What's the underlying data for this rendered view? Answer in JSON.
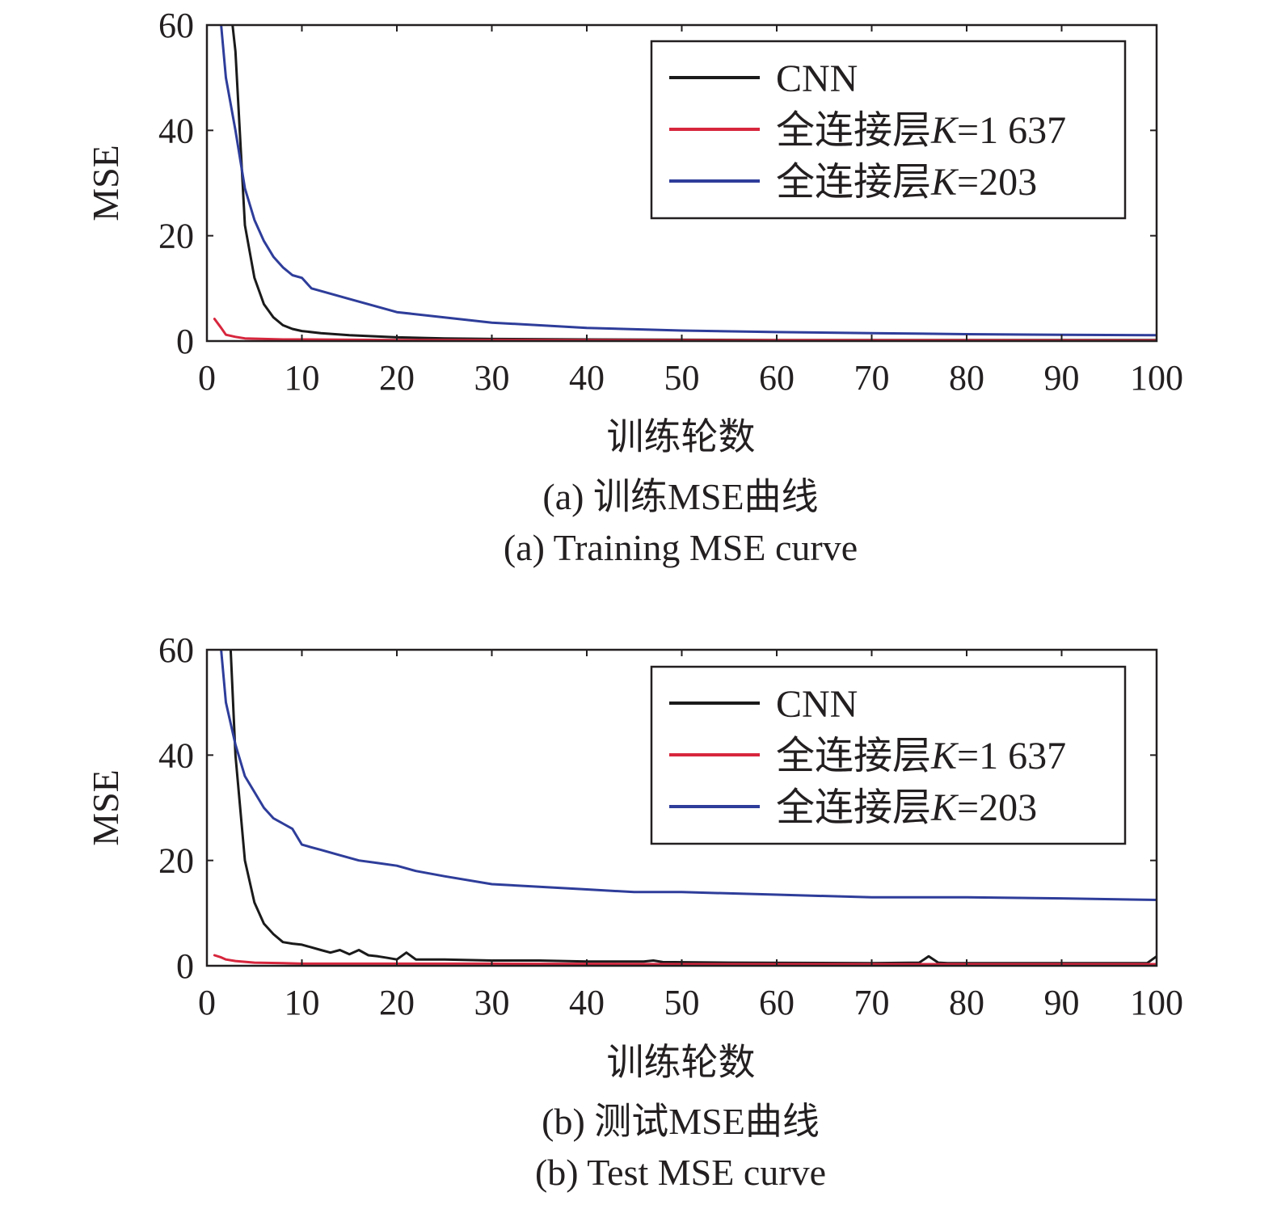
{
  "chart_data": [
    {
      "type": "line",
      "xlabel": "训练轮数",
      "ylabel": "MSE",
      "caption_cn": "(a) 训练MSE曲线",
      "caption_en": "(a) Training MSE curve",
      "xlim": [
        0,
        100
      ],
      "ylim": [
        0,
        60
      ],
      "xticks": [
        "0",
        "10",
        "20",
        "30",
        "40",
        "50",
        "60",
        "70",
        "80",
        "90",
        "100"
      ],
      "yticks": [
        "0",
        "20",
        "40",
        "60"
      ],
      "legend_position": "top-right",
      "series": [
        {
          "name": "CNN",
          "color": "#1a1a1a",
          "x": [
            2.7,
            3,
            4,
            5,
            6,
            7,
            8,
            9,
            10,
            12,
            15,
            20,
            25,
            30,
            40,
            50,
            60,
            70,
            80,
            90,
            100
          ],
          "y": [
            60,
            55,
            22,
            12,
            7,
            4.5,
            3,
            2.3,
            1.9,
            1.5,
            1.1,
            0.7,
            0.5,
            0.4,
            0.3,
            0.25,
            0.2,
            0.2,
            0.2,
            0.2,
            0.2
          ]
        },
        {
          "name": "全连接层K=1 637",
          "color": "#d7263d",
          "x": [
            0.8,
            1.5,
            2,
            3,
            4,
            6,
            8,
            10,
            20,
            30,
            50,
            70,
            100
          ],
          "y": [
            4.2,
            2.5,
            1.2,
            0.8,
            0.5,
            0.4,
            0.3,
            0.3,
            0.2,
            0.2,
            0.15,
            0.15,
            0.1
          ]
        },
        {
          "name": "全连接层K=203",
          "color": "#2e3d9a",
          "x": [
            1.5,
            2,
            3,
            4,
            5,
            6,
            7,
            8,
            9,
            10,
            11,
            12,
            15,
            20,
            25,
            30,
            40,
            50,
            60,
            70,
            80,
            90,
            100
          ],
          "y": [
            60,
            50,
            40,
            29,
            23,
            19,
            16,
            14,
            12.5,
            12,
            10,
            9.5,
            8,
            5.5,
            4.5,
            3.5,
            2.5,
            2,
            1.7,
            1.5,
            1.3,
            1.2,
            1.1
          ]
        }
      ]
    },
    {
      "type": "line",
      "xlabel": "训练轮数",
      "ylabel": "MSE",
      "caption_cn": "(b) 测试MSE曲线",
      "caption_en": "(b) Test MSE curve",
      "xlim": [
        0,
        100
      ],
      "ylim": [
        0,
        60
      ],
      "xticks": [
        "0",
        "10",
        "20",
        "30",
        "40",
        "50",
        "60",
        "70",
        "80",
        "90",
        "100"
      ],
      "yticks": [
        "0",
        "20",
        "40",
        "60"
      ],
      "legend_position": "top-right",
      "series": [
        {
          "name": "CNN",
          "color": "#1a1a1a",
          "x": [
            2.5,
            3,
            4,
            5,
            6,
            7,
            8,
            9,
            10,
            11,
            12,
            13,
            14,
            15,
            16,
            17,
            18,
            19,
            20,
            21,
            22,
            25,
            30,
            35,
            40,
            46,
            47,
            48,
            55,
            70,
            75,
            76,
            77,
            78,
            85,
            90,
            99,
            100
          ],
          "y": [
            60,
            40,
            20,
            12,
            8,
            6,
            4.5,
            4.2,
            4,
            3.5,
            3,
            2.5,
            3,
            2.2,
            3,
            2,
            1.8,
            1.5,
            1.2,
            2.5,
            1.2,
            1.2,
            1,
            1,
            0.8,
            0.8,
            1,
            0.7,
            0.6,
            0.5,
            0.6,
            1.8,
            0.6,
            0.5,
            0.5,
            0.5,
            0.5,
            1.8
          ]
        },
        {
          "name": "全连接层K=1 637",
          "color": "#d7263d",
          "x": [
            0.8,
            1.5,
            2,
            3,
            5,
            8,
            10,
            20,
            30,
            50,
            70,
            100
          ],
          "y": [
            2,
            1.6,
            1.2,
            0.9,
            0.6,
            0.5,
            0.4,
            0.4,
            0.4,
            0.3,
            0.3,
            0.3
          ]
        },
        {
          "name": "全连接层K=203",
          "color": "#2e3d9a",
          "x": [
            1.5,
            2,
            3,
            4,
            5,
            6,
            7,
            8,
            9,
            10,
            11,
            12,
            14,
            16,
            18,
            20,
            22,
            25,
            30,
            35,
            40,
            45,
            50,
            60,
            70,
            80,
            90,
            100
          ],
          "y": [
            60,
            50,
            42,
            36,
            33,
            30,
            28,
            27,
            26,
            23,
            22.5,
            22,
            21,
            20,
            19.5,
            19,
            18,
            17,
            15.5,
            15,
            14.5,
            14,
            14,
            13.5,
            13,
            13,
            12.8,
            12.5
          ]
        }
      ]
    }
  ]
}
